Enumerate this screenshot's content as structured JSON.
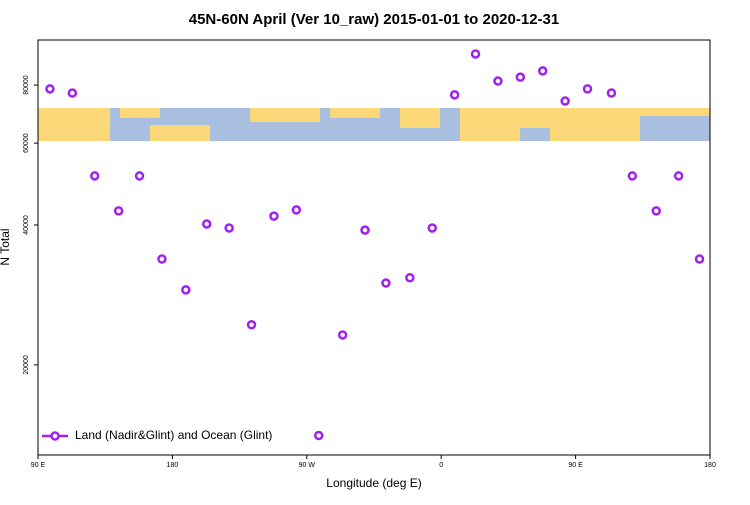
{
  "chart_data": {
    "type": "scatter",
    "title": "45N-60N April (Ver 10_raw)   2015-01-01 to 2020-12-31",
    "x_label": "Longitude (deg E)",
    "y_label": "N Total",
    "log_y": true,
    "legend": "bottom-left",
    "xlim": [
      90,
      540
    ],
    "xticks": [
      {
        "value": 90,
        "label": "90 E"
      },
      {
        "value": 180,
        "label": "180"
      },
      {
        "value": 270,
        "label": "90 W"
      },
      {
        "value": 360,
        "label": "0"
      },
      {
        "value": 450,
        "label": "90 E"
      },
      {
        "value": 540,
        "label": "180"
      }
    ],
    "ylim": [
      12800,
      100000
    ],
    "yticks": [
      20000,
      40000,
      60000,
      80000
    ],
    "series": [
      {
        "name": "Land (Nadir&Glint) and Ocean (Glint)",
        "color": "#a020f0",
        "x": [
          98,
          113,
          128,
          144,
          158,
          173,
          189,
          203,
          218,
          233,
          248,
          263,
          278,
          294,
          309,
          323,
          339,
          354,
          369,
          383,
          398,
          413,
          428,
          443,
          458,
          474,
          488,
          504,
          519,
          533
        ],
        "values": [
          78500,
          76900,
          51000,
          42900,
          51000,
          33800,
          29000,
          40200,
          39400,
          24400,
          41800,
          43100,
          14100,
          23200,
          39000,
          30000,
          30800,
          39400,
          76200,
          93300,
          81600,
          83200,
          85800,
          73900,
          78500,
          76900,
          51000,
          42900,
          51000,
          33800
        ]
      }
    ]
  }
}
